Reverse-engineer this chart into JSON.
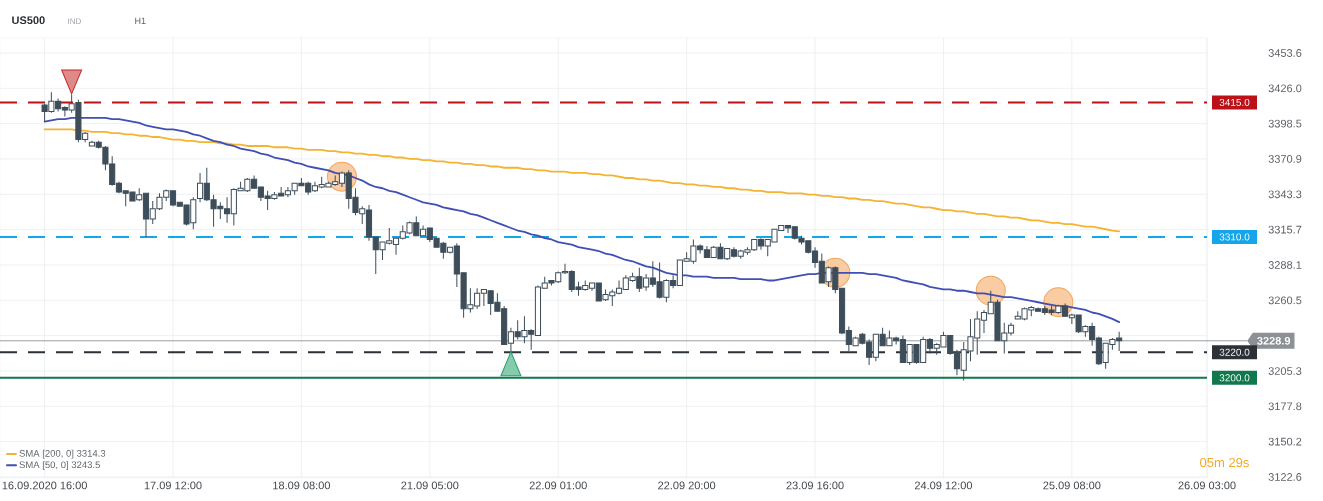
{
  "chart_data": {
    "type": "candlestick",
    "title": "US500",
    "subtitle": "IND",
    "annotations": [
      "H1",
      "05m 29s"
    ],
    "color": "#3d4d59",
    "categories": [
      "16.09.2020 16:00",
      null,
      null,
      null,
      null,
      null,
      null,
      null,
      null,
      null,
      null,
      null,
      null,
      null,
      null,
      null,
      null,
      null,
      null,
      "17.09 12:00",
      null,
      null,
      null,
      null,
      null,
      null,
      null,
      null,
      null,
      null,
      null,
      null,
      null,
      null,
      null,
      null,
      null,
      null,
      "18.09 08:00",
      null,
      null,
      null,
      null,
      null,
      null,
      null,
      null,
      null,
      null,
      null,
      null,
      null,
      null,
      null,
      null,
      null,
      null,
      "21.09 05:00",
      null,
      null,
      null,
      null,
      null,
      null,
      null,
      null,
      null,
      null,
      null,
      null,
      null,
      null,
      null,
      null,
      null,
      null,
      "22.09 01:00",
      null,
      null,
      null,
      null,
      null,
      null,
      null,
      null,
      null,
      null,
      null,
      null,
      null,
      null,
      null,
      null,
      null,
      null,
      "22.09 20:00",
      null,
      null,
      null,
      null,
      null,
      null,
      null,
      null,
      null,
      null,
      null,
      null,
      null,
      null,
      null,
      null,
      null,
      null,
      "23.09 16:00",
      null,
      null,
      null,
      null,
      null,
      null,
      null,
      null,
      null,
      null,
      null,
      null,
      null,
      null,
      null,
      null,
      null,
      null,
      "24.09 12:00",
      null,
      null,
      null,
      null,
      null,
      null,
      null,
      null,
      null,
      null,
      null,
      null,
      null,
      null,
      null,
      null,
      null,
      null,
      "25.09 08:00",
      null,
      null,
      null,
      null,
      null,
      null,
      null,
      null,
      null,
      null,
      null,
      null,
      null,
      null,
      null,
      null,
      null,
      null,
      null,
      "26.09 03:00"
    ],
    "ohlc": [
      [
        3413,
        3414,
        3400,
        3408
      ],
      [
        3408,
        3423,
        3407,
        3416
      ],
      [
        3416,
        3418,
        3408,
        3410
      ],
      [
        3411,
        3412,
        3404,
        3409
      ],
      [
        3409,
        3421,
        3407,
        3414
      ],
      [
        3415,
        3417,
        3384,
        3386
      ],
      [
        3386,
        3392,
        3384,
        3391
      ],
      [
        3381,
        3385,
        3381,
        3384
      ],
      [
        3384,
        3385,
        3379,
        3380
      ],
      [
        3380,
        3381,
        3362,
        3367
      ],
      [
        3367,
        3373,
        3350,
        3351
      ],
      [
        3352,
        3353,
        3344,
        3345
      ],
      [
        3346,
        3346,
        3334,
        3344
      ],
      [
        3345,
        3345,
        3338,
        3338
      ],
      [
        3339,
        3348,
        3338,
        3343
      ],
      [
        3344,
        3344,
        3310,
        3324
      ],
      [
        3324,
        3338,
        3320,
        3332
      ],
      [
        3332,
        3344,
        3331,
        3341
      ],
      [
        3341,
        3347,
        3338,
        3346
      ],
      [
        3346,
        3346,
        3334,
        3335
      ],
      [
        3337,
        3337,
        3334,
        3334
      ],
      [
        3335,
        3335,
        3319,
        3320
      ],
      [
        3321,
        3341,
        3316,
        3339
      ],
      [
        3340,
        3360,
        3337,
        3352
      ],
      [
        3352,
        3364,
        3338,
        3339
      ],
      [
        3339,
        3343,
        3318,
        3332
      ],
      [
        3334,
        3337,
        3324,
        3332
      ],
      [
        3332,
        3341,
        3321,
        3328
      ],
      [
        3328,
        3348,
        3319,
        3347
      ],
      [
        3346,
        3353,
        3346,
        3348
      ],
      [
        3346,
        3356,
        3345,
        3355
      ],
      [
        3355,
        3358,
        3348,
        3348
      ],
      [
        3349,
        3349,
        3338,
        3341
      ],
      [
        3342,
        3346,
        3331,
        3340
      ],
      [
        3340,
        3345,
        3339,
        3343
      ],
      [
        3344,
        3349,
        3342,
        3342
      ],
      [
        3343,
        3349,
        3341,
        3346
      ],
      [
        3346,
        3352,
        3343,
        3352
      ],
      [
        3352,
        3356,
        3350,
        3350
      ],
      [
        3352,
        3353,
        3343,
        3345
      ],
      [
        3346,
        3353,
        3345,
        3350
      ],
      [
        3349,
        3357,
        3348,
        3351
      ],
      [
        3349,
        3353,
        3349,
        3352
      ],
      [
        3351,
        3358,
        3350,
        3353
      ],
      [
        3352,
        3361,
        3349,
        3360
      ],
      [
        3360,
        3362,
        3332,
        3340
      ],
      [
        3341,
        3348,
        3327,
        3329
      ],
      [
        3328,
        3334,
        3320,
        3332
      ],
      [
        3331,
        3335,
        3307,
        3310
      ],
      [
        3310,
        3310,
        3281,
        3300
      ],
      [
        3300,
        3306,
        3292,
        3306
      ],
      [
        3305,
        3317,
        3304,
        3307
      ],
      [
        3304,
        3309,
        3296,
        3309
      ],
      [
        3309,
        3319,
        3308,
        3314
      ],
      [
        3313,
        3322,
        3312,
        3321
      ],
      [
        3321,
        3326,
        3311,
        3311
      ],
      [
        3311,
        3319,
        3311,
        3316
      ],
      [
        3317,
        3317,
        3306,
        3308
      ],
      [
        3309,
        3309,
        3302,
        3302
      ],
      [
        3305,
        3306,
        3293,
        3298
      ],
      [
        3298,
        3302,
        3297,
        3302
      ],
      [
        3303,
        3305,
        3271,
        3281
      ],
      [
        3282,
        3282,
        3247,
        3254
      ],
      [
        3254,
        3270,
        3251,
        3257
      ],
      [
        3256,
        3270,
        3254,
        3266
      ],
      [
        3266,
        3269,
        3256,
        3269
      ],
      [
        3268,
        3268,
        3249,
        3258
      ],
      [
        3259,
        3266,
        3252,
        3252
      ],
      [
        3254,
        3256,
        3226,
        3226
      ],
      [
        3227,
        3239,
        3221,
        3236
      ],
      [
        3236,
        3245,
        3230,
        3232
      ],
      [
        3232,
        3248,
        3227,
        3237
      ],
      [
        3237,
        3238,
        3222,
        3234
      ],
      [
        3233,
        3272,
        3233,
        3271
      ],
      [
        3270,
        3279,
        3270,
        3274
      ],
      [
        3276,
        3276,
        3272,
        3274
      ],
      [
        3275,
        3283,
        3274,
        3282
      ],
      [
        3282,
        3289,
        3281,
        3283
      ],
      [
        3283,
        3284,
        3267,
        3269
      ],
      [
        3271,
        3275,
        3264,
        3269
      ],
      [
        3269,
        3276,
        3268,
        3272
      ],
      [
        3270,
        3274,
        3268,
        3274
      ],
      [
        3274,
        3274,
        3260,
        3260
      ],
      [
        3261,
        3269,
        3260,
        3265
      ],
      [
        3264,
        3269,
        3256,
        3267
      ],
      [
        3266,
        3276,
        3265,
        3270
      ],
      [
        3269,
        3280,
        3269,
        3278
      ],
      [
        3276,
        3282,
        3275,
        3279
      ],
      [
        3279,
        3286,
        3267,
        3270
      ],
      [
        3271,
        3281,
        3268,
        3278
      ],
      [
        3278,
        3291,
        3271,
        3273
      ],
      [
        3275,
        3290,
        3262,
        3263
      ],
      [
        3263,
        3277,
        3259,
        3276
      ],
      [
        3276,
        3280,
        3270,
        3272
      ],
      [
        3272,
        3292,
        3272,
        3292
      ],
      [
        3291,
        3298,
        3291,
        3293
      ],
      [
        3291,
        3308,
        3289,
        3303
      ],
      [
        3303,
        3304,
        3297,
        3300
      ],
      [
        3300,
        3303,
        3294,
        3294
      ],
      [
        3294,
        3303,
        3294,
        3302
      ],
      [
        3302,
        3305,
        3293,
        3293
      ],
      [
        3293,
        3301,
        3292,
        3301
      ],
      [
        3300,
        3302,
        3294,
        3295
      ],
      [
        3295,
        3300,
        3293,
        3299
      ],
      [
        3298,
        3302,
        3296,
        3300
      ],
      [
        3300,
        3308,
        3299,
        3308
      ],
      [
        3308,
        3309,
        3300,
        3303
      ],
      [
        3303,
        3308,
        3295,
        3308
      ],
      [
        3306,
        3316,
        3306,
        3316
      ],
      [
        3315,
        3319,
        3315,
        3319
      ],
      [
        3319,
        3319,
        3313,
        3317
      ],
      [
        3318,
        3318,
        3308,
        3309
      ],
      [
        3309,
        3311,
        3304,
        3306
      ],
      [
        3307,
        3307,
        3297,
        3298
      ],
      [
        3299,
        3302,
        3286,
        3290
      ],
      [
        3291,
        3297,
        3274,
        3274
      ],
      [
        3275,
        3287,
        3271,
        3286
      ],
      [
        3286,
        3287,
        3266,
        3269
      ],
      [
        3270,
        3270,
        3234,
        3235
      ],
      [
        3237,
        3240,
        3221,
        3226
      ],
      [
        3225,
        3232,
        3225,
        3231
      ],
      [
        3234,
        3235,
        3226,
        3227
      ],
      [
        3228,
        3230,
        3210,
        3216
      ],
      [
        3216,
        3234,
        3213,
        3234
      ],
      [
        3234,
        3239,
        3225,
        3225
      ],
      [
        3225,
        3237,
        3225,
        3231
      ],
      [
        3231,
        3232,
        3226,
        3229
      ],
      [
        3230,
        3233,
        3212,
        3212
      ],
      [
        3212,
        3226,
        3210,
        3226
      ],
      [
        3226,
        3226,
        3211,
        3212
      ],
      [
        3212,
        3232,
        3212,
        3230
      ],
      [
        3230,
        3231,
        3219,
        3223
      ],
      [
        3223,
        3227,
        3218,
        3226
      ],
      [
        3224,
        3236,
        3224,
        3233
      ],
      [
        3233,
        3233,
        3218,
        3219
      ],
      [
        3220,
        3222,
        3202,
        3207
      ],
      [
        3206,
        3228,
        3198,
        3222
      ],
      [
        3221,
        3246,
        3213,
        3232
      ],
      [
        3231,
        3252,
        3218,
        3246
      ],
      [
        3245,
        3253,
        3235,
        3251
      ],
      [
        3250,
        3268,
        3250,
        3259
      ],
      [
        3259,
        3261,
        3229,
        3229
      ],
      [
        3229,
        3243,
        3219,
        3235
      ],
      [
        3235,
        3243,
        3233,
        3241
      ],
      [
        3246,
        3252,
        3246,
        3248
      ],
      [
        3246,
        3255,
        3245,
        3254
      ],
      [
        3253,
        3256,
        3248,
        3255
      ],
      [
        3254,
        3255,
        3252,
        3252
      ],
      [
        3254,
        3256,
        3249,
        3251
      ],
      [
        3253,
        3256,
        3249,
        3251
      ],
      [
        3251,
        3257,
        3250,
        3256
      ],
      [
        3256,
        3258,
        3248,
        3248
      ],
      [
        3247,
        3250,
        3242,
        3249
      ],
      [
        3249,
        3249,
        3235,
        3236
      ],
      [
        3236,
        3241,
        3232,
        3240
      ],
      [
        3240,
        3243,
        3225,
        3230
      ],
      [
        3231,
        3232,
        3210,
        3211
      ],
      [
        3212,
        3227,
        3207,
        3227
      ],
      [
        3226,
        3231,
        3222,
        3230
      ],
      [
        3231,
        3236,
        3221,
        3228.9
      ],
      null,
      null,
      null,
      null,
      null,
      null,
      null,
      null,
      null,
      null,
      null,
      null,
      null
    ],
    "series": [
      {
        "type": "scatter",
        "marker": "circle",
        "color": "#f4a35a",
        "values": [
          null,
          null,
          null,
          null,
          null,
          null,
          null,
          null,
          null,
          null,
          null,
          null,
          null,
          null,
          null,
          null,
          null,
          null,
          null,
          null,
          null,
          null,
          null,
          null,
          null,
          null,
          null,
          null,
          null,
          null,
          null,
          null,
          null,
          null,
          null,
          null,
          null,
          null,
          null,
          null,
          null,
          null,
          null,
          null,
          3357,
          null,
          null,
          null,
          null,
          null,
          null,
          null,
          null,
          null,
          null,
          null,
          null,
          null,
          null,
          null,
          null,
          null,
          null,
          null,
          null,
          null,
          null,
          null,
          null,
          null,
          null,
          null,
          null,
          null,
          null,
          null,
          null,
          null,
          null,
          null,
          null,
          null,
          null,
          null,
          null,
          null,
          null,
          null,
          null,
          null,
          null,
          null,
          null,
          null,
          null,
          null,
          null,
          null,
          null,
          null,
          null,
          null,
          null,
          null,
          null,
          null,
          null,
          null,
          null,
          null,
          null,
          null,
          null,
          null,
          null,
          null,
          null,
          3282,
          null,
          null,
          null,
          null,
          null,
          null,
          null,
          null,
          null,
          null,
          null,
          null,
          null,
          null,
          null,
          null,
          null,
          null,
          null,
          null,
          null,
          null,
          3268,
          null,
          null,
          null,
          null,
          null,
          null,
          null,
          null,
          null,
          3259,
          null,
          null,
          null,
          null,
          null,
          null,
          null,
          null,
          null,
          null,
          null,
          null,
          null,
          null,
          null,
          null,
          null,
          null,
          null,
          null,
          null,
          null
        ]
      },
      {
        "type": "line",
        "name": "SMA [200, 0] 3314.3",
        "color": "#f5b332",
        "values": [
          3394,
          3394,
          3394,
          3394,
          3394,
          3393,
          3393,
          3392,
          3392,
          3392,
          3391,
          3391,
          3390,
          3390,
          3389,
          3389,
          3388,
          3388,
          3387,
          3386,
          3386,
          3385,
          3385,
          3384,
          3384,
          3384,
          3383,
          3383,
          3382,
          3382,
          3381,
          3381,
          3381,
          3381,
          3380,
          3380,
          3380,
          3379,
          3379,
          3378,
          3378,
          3378,
          3377,
          3377,
          3376,
          3376,
          3375,
          3375,
          3374,
          3374,
          3373,
          3373,
          3372,
          3372,
          3371,
          3371,
          3370,
          3370,
          3369,
          3369,
          3368,
          3368,
          3367,
          3367,
          3366,
          3366,
          3365,
          3365,
          3364,
          3364,
          3364,
          3363,
          3363,
          3362,
          3362,
          3361,
          3361,
          3361,
          3360,
          3360,
          3360,
          3359,
          3359,
          3358,
          3358,
          3357,
          3356,
          3356,
          3355,
          3355,
          3354,
          3354,
          3353,
          3352,
          3352,
          3351,
          3351,
          3350,
          3350,
          3349,
          3349,
          3348,
          3348,
          3347,
          3347,
          3346,
          3346,
          3345,
          3345,
          3345,
          3344,
          3344,
          3344,
          3343,
          3343,
          3342,
          3342,
          3341,
          3341,
          3340,
          3340,
          3339,
          3339,
          3338,
          3338,
          3337,
          3336,
          3336,
          3335,
          3334,
          3333,
          3333,
          3332,
          3331,
          3331,
          3330,
          3330,
          3329,
          3328,
          3328,
          3327,
          3326,
          3326,
          3325,
          3325,
          3324,
          3323,
          3323,
          3322,
          3321,
          3321,
          3320,
          3320,
          3319,
          3318,
          3318,
          3317,
          3316,
          3315,
          3314.3,
          null,
          null,
          null,
          null,
          null,
          null,
          null,
          null,
          null,
          null,
          null,
          null,
          null
        ]
      },
      {
        "type": "line",
        "name": "SMA [50, 0] 3243.5",
        "color": "#3f4fb5",
        "values": [
          3400,
          3401,
          3402,
          3402,
          3403,
          3403,
          3403,
          3403,
          3403,
          3403,
          3402,
          3402,
          3401,
          3400,
          3399,
          3397,
          3396,
          3395,
          3394,
          3394,
          3393,
          3392,
          3390,
          3389,
          3387,
          3385,
          3384,
          3382,
          3381,
          3379,
          3378,
          3377,
          3375,
          3374,
          3372,
          3371,
          3370,
          3368,
          3367,
          3365,
          3364,
          3363,
          3362,
          3360,
          3359,
          3358,
          3356,
          3354,
          3351,
          3349,
          3348,
          3346,
          3345,
          3343,
          3341,
          3339,
          3337,
          3336,
          3335,
          3333,
          3332,
          3331,
          3330,
          3328,
          3327,
          3325,
          3323,
          3321,
          3319,
          3317,
          3315,
          3314,
          3312,
          3311,
          3309,
          3308,
          3306,
          3305,
          3304,
          3302,
          3301,
          3300,
          3299,
          3297,
          3296,
          3294,
          3292,
          3291,
          3289,
          3287,
          3286,
          3284,
          3282,
          3281,
          3280,
          3280,
          3279,
          3279,
          3279,
          3278,
          3278,
          3278,
          3278,
          3277,
          3277,
          3277,
          3277,
          3276,
          3276,
          3277,
          3278,
          3279,
          3280,
          3281,
          3281,
          3282,
          3282,
          3282,
          3282,
          3282,
          3282,
          3282,
          3281,
          3281,
          3280,
          3279,
          3278,
          3276,
          3275,
          3274,
          3273,
          3271,
          3270,
          3269,
          3269,
          3268,
          3268,
          3267,
          3266,
          3266,
          3265,
          3264,
          3263,
          3263,
          3262,
          3261,
          3260,
          3259,
          3258,
          3257,
          3256,
          3256,
          3255,
          3254,
          3253,
          3251,
          3250,
          3248,
          3246,
          3243.5,
          null,
          null,
          null,
          null,
          null,
          null,
          null,
          null,
          null,
          null,
          null,
          null,
          null
        ]
      },
      {
        "type": "scatter",
        "marker": "triangle",
        "color": "#c62828",
        "values": [
          null,
          null,
          null,
          null,
          3431,
          null,
          null,
          null,
          null,
          null,
          null,
          null,
          null,
          null,
          null,
          null,
          null,
          null,
          null,
          null,
          null,
          null,
          null,
          null,
          null,
          null,
          null,
          null,
          null,
          null,
          null,
          null,
          null,
          null,
          null,
          null,
          null,
          null,
          null,
          null,
          null,
          null,
          null,
          null,
          null,
          null,
          null,
          null,
          null,
          null,
          null,
          null,
          null,
          null,
          null,
          null,
          null,
          null,
          null,
          null,
          null,
          null,
          null,
          null,
          null,
          null,
          null,
          null,
          null,
          null,
          null,
          null,
          null,
          null,
          null,
          null,
          null,
          null,
          null,
          null,
          null,
          null,
          null,
          null,
          null,
          null,
          null,
          null,
          null,
          null,
          null,
          null,
          null,
          null,
          null,
          null,
          null,
          null,
          null,
          null,
          null,
          null,
          null,
          null,
          null,
          null,
          null,
          null,
          null,
          null,
          null,
          null,
          null,
          null,
          null,
          null,
          null,
          null,
          null,
          null,
          null,
          null,
          null,
          null,
          null,
          null,
          null,
          null,
          null,
          null,
          null,
          null,
          null,
          null,
          null,
          null,
          null,
          null,
          null,
          null,
          null,
          null,
          null,
          null,
          null,
          null,
          null,
          null,
          null,
          null,
          null,
          null,
          null,
          null,
          null,
          null,
          null,
          null,
          null,
          null,
          null,
          null,
          null,
          null,
          null,
          null,
          null,
          null,
          null,
          null,
          null,
          null,
          null
        ]
      },
      {
        "type": "scatter",
        "marker": "triangle",
        "color": "#23a06a",
        "values": [
          null,
          null,
          null,
          null,
          null,
          null,
          null,
          null,
          null,
          null,
          null,
          null,
          null,
          null,
          null,
          null,
          null,
          null,
          null,
          null,
          null,
          null,
          null,
          null,
          null,
          null,
          null,
          null,
          null,
          null,
          null,
          null,
          null,
          null,
          null,
          null,
          null,
          null,
          null,
          null,
          null,
          null,
          null,
          null,
          null,
          null,
          null,
          null,
          null,
          null,
          null,
          null,
          null,
          null,
          null,
          null,
          null,
          null,
          null,
          null,
          null,
          null,
          null,
          null,
          null,
          null,
          null,
          null,
          null,
          3211,
          null,
          null,
          null,
          null,
          null,
          null,
          null,
          null,
          null,
          null,
          null,
          null,
          null,
          null,
          null,
          null,
          null,
          null,
          null,
          null,
          null,
          null,
          null,
          null,
          null,
          null,
          null,
          null,
          null,
          null,
          null,
          null,
          null,
          null,
          null,
          null,
          null,
          null,
          null,
          null,
          null,
          null,
          null,
          null,
          null,
          null,
          null,
          null,
          null,
          null,
          null,
          null,
          null,
          null,
          null,
          null,
          null,
          null,
          null,
          null,
          null,
          null,
          null,
          null,
          null,
          null,
          null,
          null,
          null,
          null,
          null,
          null,
          null,
          null,
          null,
          null,
          null,
          null,
          null,
          null,
          null,
          null,
          null,
          null,
          null,
          null,
          null,
          null,
          null,
          null,
          null,
          null,
          null,
          null,
          null,
          null,
          null,
          null,
          null,
          null,
          null,
          null,
          null
        ]
      }
    ],
    "ref_lines": [
      {
        "axis": "y",
        "value": 3415.0,
        "label": "3415.0",
        "color": "#bd1118",
        "line_style": "dashed"
      },
      {
        "axis": "y",
        "value": 3310.0,
        "label": "3310.0",
        "color": "#14a6ea",
        "line_style": "dashed"
      },
      {
        "axis": "y",
        "value": 3228.9,
        "label": "3228.9",
        "color": "#8d9195",
        "line_style": "solid"
      },
      {
        "axis": "y",
        "value": 3220.0,
        "label": "3220.0",
        "color": "#2b3137",
        "line_style": "dashed"
      },
      {
        "axis": "y",
        "value": 3200.0,
        "label": "3200.0",
        "color": "#11784d",
        "line_style": "solid"
      }
    ],
    "ylim": [
      3121.8,
      3465.3
    ],
    "yticks": [
      3122.6,
      3150.2,
      3177.8,
      3205.3,
      {
        "value": 3232.9,
        "label": null
      },
      3260.5,
      3288.1,
      3315.7,
      3343.3,
      3370.9,
      3398.5,
      {
        "value": 3426.0,
        "label": "3426.0"
      },
      3453.6
    ],
    "grid": true,
    "legend": "bottom left"
  }
}
